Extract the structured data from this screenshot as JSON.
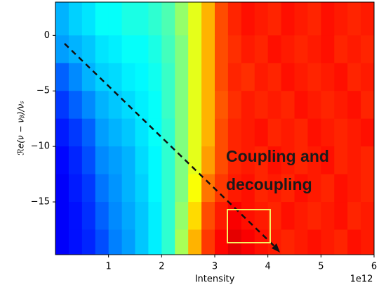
{
  "chart_data": {
    "type": "heatmap",
    "x_label": "Intensity",
    "y_label": "ℛe(ν − νᵦ)/νₛ",
    "x_offset_label": "1e12",
    "annotation": [
      "Coupling and",
      "decoupling"
    ],
    "colormap": "jet",
    "xlim": [
      0,
      6
    ],
    "ylim": [
      -19.75,
      3
    ],
    "xticks": [
      1,
      2,
      3,
      4,
      5,
      6
    ],
    "yticks": [
      0,
      {
        "value": -5,
        "label": "−5"
      },
      {
        "value": -10,
        "label": "−10"
      },
      {
        "value": -15,
        "label": "−15"
      }
    ],
    "x_edges": [
      0,
      0.25,
      0.5,
      0.75,
      1,
      1.25,
      1.5,
      1.75,
      2,
      2.25,
      2.5,
      2.75,
      3,
      3.25,
      3.5,
      3.75,
      4,
      4.25,
      4.5,
      4.75,
      5,
      5.25,
      5.5,
      5.75,
      6
    ],
    "y_edges": [
      3,
      0,
      -2.5,
      -5,
      -7.5,
      -10,
      -12.5,
      -15,
      -17.5,
      -19.75
    ],
    "z": [
      [
        0.3,
        0.33,
        0.35,
        0.38,
        0.38,
        0.4,
        0.4,
        0.42,
        0.45,
        0.52,
        0.6,
        0.7,
        0.8,
        0.84,
        0.86,
        0.85,
        0.84,
        0.86,
        0.85,
        0.84,
        0.86,
        0.85,
        0.84,
        0.85
      ],
      [
        0.28,
        0.3,
        0.32,
        0.35,
        0.36,
        0.38,
        0.38,
        0.4,
        0.44,
        0.5,
        0.6,
        0.7,
        0.8,
        0.83,
        0.85,
        0.84,
        0.86,
        0.85,
        0.84,
        0.85,
        0.86,
        0.84,
        0.85,
        0.84
      ],
      [
        0.22,
        0.26,
        0.3,
        0.33,
        0.34,
        0.36,
        0.37,
        0.39,
        0.43,
        0.5,
        0.6,
        0.7,
        0.8,
        0.84,
        0.83,
        0.85,
        0.84,
        0.86,
        0.85,
        0.84,
        0.85,
        0.86,
        0.84,
        0.85
      ],
      [
        0.18,
        0.22,
        0.26,
        0.3,
        0.32,
        0.34,
        0.36,
        0.38,
        0.43,
        0.5,
        0.6,
        0.7,
        0.79,
        0.83,
        0.85,
        0.84,
        0.85,
        0.84,
        0.86,
        0.85,
        0.84,
        0.85,
        0.86,
        0.84
      ],
      [
        0.15,
        0.18,
        0.22,
        0.28,
        0.3,
        0.32,
        0.35,
        0.38,
        0.42,
        0.5,
        0.6,
        0.7,
        0.8,
        0.84,
        0.85,
        0.86,
        0.84,
        0.85,
        0.84,
        0.86,
        0.85,
        0.84,
        0.85,
        0.86
      ],
      [
        0.13,
        0.16,
        0.2,
        0.26,
        0.28,
        0.3,
        0.34,
        0.37,
        0.42,
        0.5,
        0.6,
        0.72,
        0.8,
        0.84,
        0.85,
        0.84,
        0.86,
        0.85,
        0.84,
        0.85,
        0.86,
        0.84,
        0.85,
        0.84
      ],
      [
        0.12,
        0.15,
        0.18,
        0.24,
        0.27,
        0.3,
        0.33,
        0.37,
        0.42,
        0.5,
        0.62,
        0.76,
        0.82,
        0.85,
        0.86,
        0.84,
        0.85,
        0.84,
        0.86,
        0.85,
        0.84,
        0.86,
        0.85,
        0.84
      ],
      [
        0.12,
        0.14,
        0.17,
        0.22,
        0.26,
        0.29,
        0.32,
        0.36,
        0.42,
        0.52,
        0.66,
        0.8,
        0.85,
        0.88,
        0.86,
        0.85,
        0.84,
        0.86,
        0.85,
        0.84,
        0.85,
        0.86,
        0.84,
        0.85
      ],
      [
        0.12,
        0.14,
        0.16,
        0.2,
        0.25,
        0.28,
        0.32,
        0.36,
        0.42,
        0.54,
        0.7,
        0.82,
        0.87,
        0.9,
        0.88,
        0.86,
        0.85,
        0.84,
        0.85,
        0.86,
        0.85,
        0.84,
        0.86,
        0.85
      ]
    ]
  }
}
